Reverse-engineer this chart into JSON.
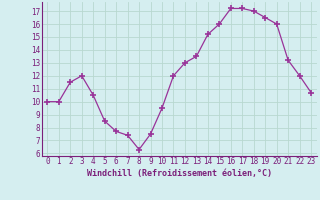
{
  "x": [
    0,
    1,
    2,
    3,
    4,
    5,
    6,
    7,
    8,
    9,
    10,
    11,
    12,
    13,
    14,
    15,
    16,
    17,
    18,
    19,
    20,
    21,
    22,
    23
  ],
  "y": [
    10,
    10,
    11.5,
    12,
    10.5,
    8.5,
    7.7,
    7.4,
    6.3,
    7.5,
    9.5,
    12,
    13,
    13.5,
    15.2,
    16,
    17.2,
    17.2,
    17,
    16.5,
    16,
    13.2,
    12,
    10.7
  ],
  "line_color": "#993399",
  "marker": "+",
  "marker_size": 4,
  "marker_lw": 1.2,
  "bg_color": "#d5eef0",
  "grid_color": "#b8d8d0",
  "xlabel": "Windchill (Refroidissement éolien,°C)",
  "xlabel_color": "#7b1f7a",
  "tick_color": "#7b1f7a",
  "xlim": [
    -0.5,
    23.5
  ],
  "ylim": [
    5.8,
    17.7
  ],
  "yticks": [
    6,
    7,
    8,
    9,
    10,
    11,
    12,
    13,
    14,
    15,
    16,
    17
  ],
  "xticks": [
    0,
    1,
    2,
    3,
    4,
    5,
    6,
    7,
    8,
    9,
    10,
    11,
    12,
    13,
    14,
    15,
    16,
    17,
    18,
    19,
    20,
    21,
    22,
    23
  ],
  "tick_fontsize": 5.5,
  "xlabel_fontsize": 6.0
}
